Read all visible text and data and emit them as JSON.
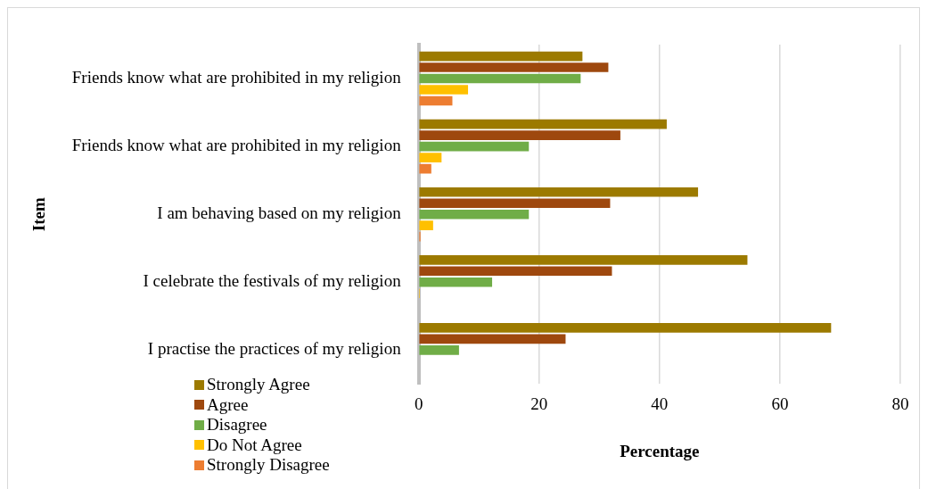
{
  "chart_data": {
    "type": "bar",
    "orientation": "horizontal",
    "xlabel": "Percentage",
    "ylabel": "Item",
    "categories": [
      "Friends know what are prohibited in my religion",
      "Friends know what are prohibited in my religion",
      "I am behaving based on my religion",
      "I celebrate the festivals of my religion",
      "I practise the practices of my religion"
    ],
    "series": [
      {
        "name": "Strongly Agree",
        "color": "#9c7a00",
        "values": [
          27.2,
          41.2,
          46.4,
          54.6,
          68.5
        ]
      },
      {
        "name": "Agree",
        "color": "#9e480e",
        "values": [
          31.5,
          33.5,
          31.8,
          32.1,
          24.4
        ]
      },
      {
        "name": "Disagree",
        "color": "#70ad47",
        "values": [
          26.9,
          18.3,
          18.3,
          12.2,
          6.7
        ]
      },
      {
        "name": "Do Not Agree",
        "color": "#ffc000",
        "values": [
          8.2,
          3.8,
          2.4,
          0.2,
          0
        ]
      },
      {
        "name": "Strongly Disagree",
        "color": "#ed7d31",
        "values": [
          5.6,
          2.1,
          0.3,
          0,
          0
        ]
      }
    ],
    "xlim": [
      0,
      80
    ],
    "xticks": [
      0,
      20,
      40,
      60,
      80
    ],
    "grid": "x",
    "legend": "bottom left"
  }
}
